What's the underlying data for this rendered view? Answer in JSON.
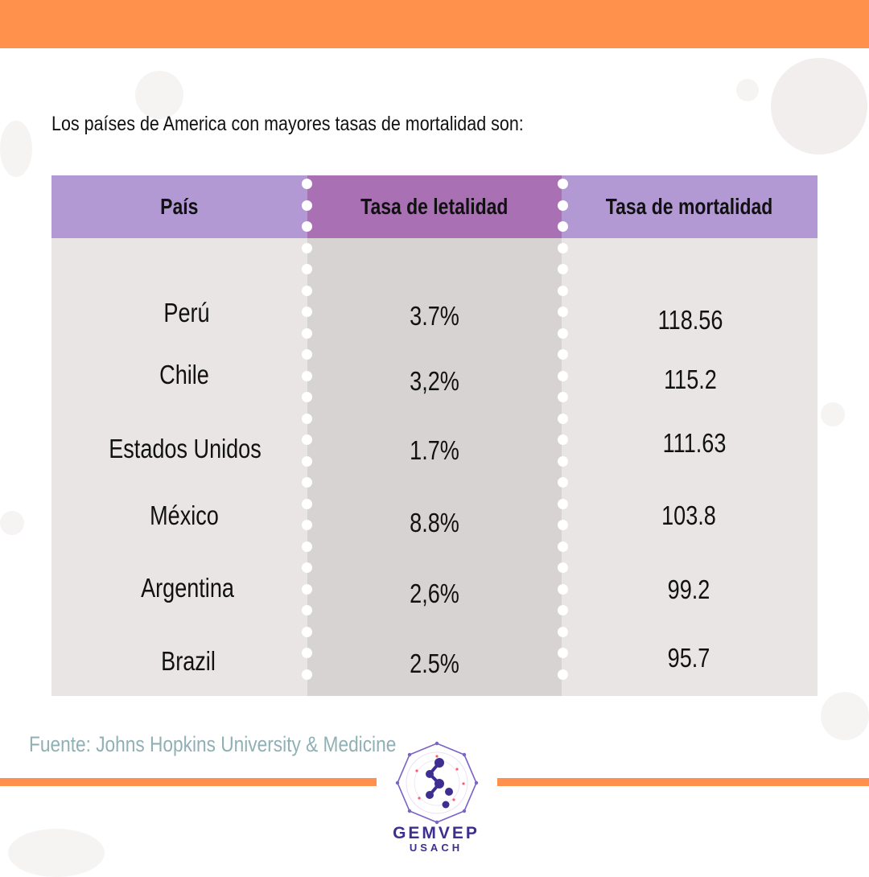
{
  "intro": "Los países de America con mayores tasas de mortalidad son:",
  "table": {
    "headers": [
      "País",
      "Tasa de letalidad",
      "Tasa de mortalidad"
    ],
    "rows": [
      {
        "pais": "Perú",
        "letalidad": "3.7%",
        "mortalidad": "118.56"
      },
      {
        "pais": "Chile",
        "letalidad": "3,2%",
        "mortalidad": "115.2"
      },
      {
        "pais": "Estados Unidos",
        "letalidad": "1.7%",
        "mortalidad": "111.63"
      },
      {
        "pais": "México",
        "letalidad": "8.8%",
        "mortalidad": "103.8"
      },
      {
        "pais": "Argentina",
        "letalidad": "2,6%",
        "mortalidad": "99.2"
      },
      {
        "pais": "Brazil",
        "letalidad": "2.5%",
        "mortalidad": "95.7"
      }
    ]
  },
  "source": "Fuente: Johns Hopkins University & Medicine",
  "logo": {
    "name": "GEMVEP",
    "sub": "USACH"
  },
  "colors": {
    "accent": "#ff914d",
    "header": "#b399d4",
    "header_mid": "#a970b3",
    "logo": "#3d2f8f",
    "source_text": "#8fb0b4"
  }
}
